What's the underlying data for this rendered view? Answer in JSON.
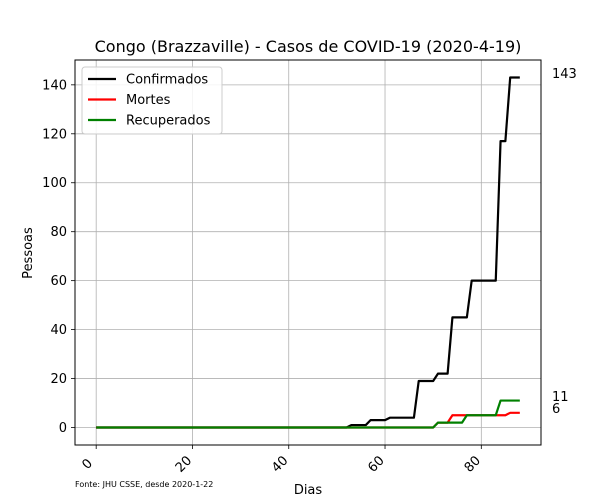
{
  "chart_data": {
    "type": "line",
    "title": "Congo (Brazzaville) - Casos de COVID-19 (2020-4-19)",
    "xlabel": "Dias",
    "ylabel": "Pessoas",
    "xlim": [
      -4.4,
      92.4
    ],
    "ylim": [
      -7.15,
      150.15
    ],
    "xticks": [
      0,
      20,
      40,
      60,
      80
    ],
    "yticks": [
      0,
      20,
      40,
      60,
      80,
      100,
      120,
      140
    ],
    "grid": true,
    "legend_position": "top-left",
    "source_note": "Fonte: JHU CSSE, desde 2020-1-22",
    "series": [
      {
        "name": "Confirmados",
        "color": "#000000",
        "points": [
          [
            0,
            0
          ],
          [
            52,
            0
          ],
          [
            53,
            1
          ],
          [
            56,
            1
          ],
          [
            57,
            3
          ],
          [
            60,
            3
          ],
          [
            61,
            4
          ],
          [
            66,
            4
          ],
          [
            67,
            19
          ],
          [
            70,
            19
          ],
          [
            71,
            22
          ],
          [
            73,
            22
          ],
          [
            74,
            45
          ],
          [
            77,
            45
          ],
          [
            78,
            60
          ],
          [
            83,
            60
          ],
          [
            84,
            117
          ],
          [
            85,
            117
          ],
          [
            86,
            143
          ],
          [
            88,
            143
          ]
        ],
        "end_label": "143"
      },
      {
        "name": "Mortes",
        "color": "#ff0000",
        "points": [
          [
            0,
            0
          ],
          [
            70,
            0
          ],
          [
            71,
            2
          ],
          [
            73,
            2
          ],
          [
            74,
            5
          ],
          [
            85,
            5
          ],
          [
            86,
            6
          ],
          [
            88,
            6
          ]
        ],
        "end_label": "6"
      },
      {
        "name": "Recuperados",
        "color": "#008000",
        "points": [
          [
            0,
            0
          ],
          [
            70,
            0
          ],
          [
            71,
            2
          ],
          [
            76,
            2
          ],
          [
            77,
            5
          ],
          [
            83,
            5
          ],
          [
            84,
            11
          ],
          [
            88,
            11
          ]
        ],
        "end_label": "11"
      }
    ]
  }
}
